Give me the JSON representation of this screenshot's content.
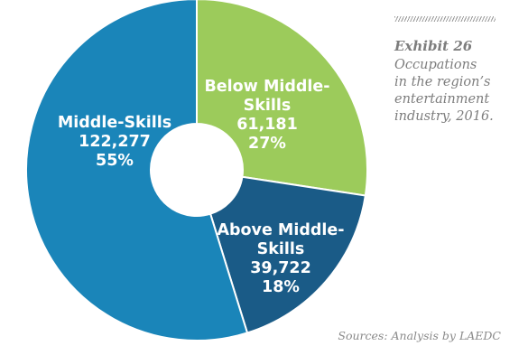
{
  "chart_data": {
    "type": "pie",
    "donut": true,
    "slices": [
      {
        "name": "Below Middle-Skills",
        "label_lines": [
          "Below Middle-",
          "Skills"
        ],
        "value": 61181,
        "value_label": "61,181",
        "percent": 27,
        "percent_label": "27%",
        "color": "#9ccb5b"
      },
      {
        "name": "Above Middle-Skills",
        "label_lines": [
          "Above Middle-",
          "Skills"
        ],
        "value": 39722,
        "value_label": "39,722",
        "percent": 18,
        "percent_label": "18%",
        "color": "#1a5b87"
      },
      {
        "name": "Middle-Skills",
        "label_lines": [
          "Middle-Skills"
        ],
        "value": 122277,
        "value_label": "122,277",
        "percent": 55,
        "percent_label": "55%",
        "color": "#1a85b9"
      }
    ],
    "start_angle": "12 o'clock",
    "direction": "clockwise",
    "legend": "none"
  },
  "exhibit": {
    "number": "Exhibit 26",
    "caption_lines": [
      "Occupations",
      "in the region’s",
      "entertainment",
      "industry, 2016."
    ]
  },
  "source": "Sources: Analysis by LAEDC"
}
